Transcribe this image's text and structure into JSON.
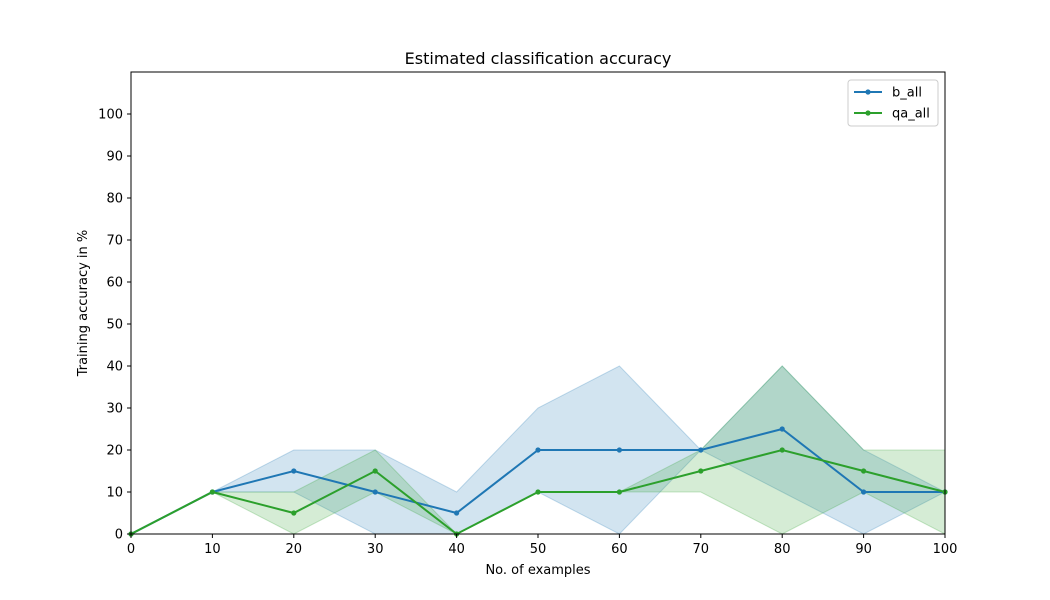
{
  "chart_data": {
    "type": "line",
    "title": "Estimated classification accuracy",
    "xlabel": "No. of examples",
    "ylabel": "Training accuracy in %",
    "x": [
      0,
      10,
      20,
      30,
      40,
      50,
      60,
      70,
      80,
      90,
      100
    ],
    "xlim": [
      0,
      100
    ],
    "ylim": [
      0,
      110
    ],
    "xticks": [
      0,
      10,
      20,
      30,
      40,
      50,
      60,
      70,
      80,
      90,
      100
    ],
    "yticks": [
      0,
      10,
      20,
      30,
      40,
      50,
      60,
      70,
      80,
      90,
      100
    ],
    "grid": false,
    "legend_position": "top-right",
    "series": [
      {
        "name": "b_all",
        "color": "#1f77b4",
        "values": [
          0,
          10,
          15,
          10,
          5,
          20,
          20,
          20,
          25,
          10,
          10
        ],
        "band_lower": [
          0,
          10,
          10,
          0,
          0,
          10,
          0,
          20,
          10,
          0,
          10
        ],
        "band_upper": [
          0,
          10,
          20,
          20,
          10,
          30,
          40,
          20,
          40,
          20,
          10
        ]
      },
      {
        "name": "qa_all",
        "color": "#2ca02c",
        "values": [
          0,
          10,
          5,
          15,
          0,
          10,
          10,
          15,
          20,
          15,
          10
        ],
        "band_lower": [
          0,
          10,
          0,
          10,
          0,
          10,
          10,
          10,
          0,
          10,
          0
        ],
        "band_upper": [
          0,
          10,
          10,
          20,
          0,
          10,
          10,
          20,
          40,
          20,
          20
        ]
      }
    ]
  }
}
